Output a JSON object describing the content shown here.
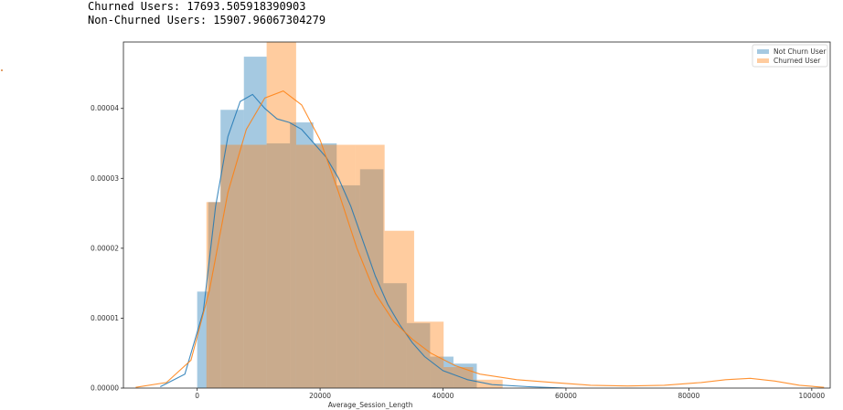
{
  "output": {
    "line1": "Churned Users: 17693.505918390903",
    "line2": "Non-Churned Users: 15907.96067304279"
  },
  "chart_data": {
    "type": "bar",
    "subtype": "overlaid histogram with KDE",
    "title": "",
    "xlabel": "Average_Session_Length",
    "ylabel": "",
    "xlim": [
      -12000,
      103000
    ],
    "ylim": [
      0,
      4.95e-05
    ],
    "x_ticks": [
      0,
      20000,
      40000,
      60000,
      80000,
      100000
    ],
    "x_tick_labels": [
      "0",
      "20000",
      "40000",
      "60000",
      "80000",
      "100000"
    ],
    "y_ticks": [
      0,
      1e-05,
      2e-05,
      3e-05,
      4e-05
    ],
    "y_tick_labels": [
      "0.00000",
      "0.00001",
      "0.00002",
      "0.00003",
      "0.00004"
    ],
    "grid": false,
    "legend_position": "top-right",
    "series": [
      {
        "name": "Not Churn User",
        "color": "#1f77b4",
        "bins": [
          {
            "x0": 0,
            "x1": 1800,
            "y": 1.38e-05
          },
          {
            "x0": 1800,
            "x1": 3800,
            "y": 2.66e-05
          },
          {
            "x0": 3800,
            "x1": 7600,
            "y": 3.98e-05
          },
          {
            "x0": 7600,
            "x1": 11300,
            "y": 4.74e-05
          },
          {
            "x0": 11300,
            "x1": 15100,
            "y": 3.5e-05
          },
          {
            "x0": 15100,
            "x1": 18900,
            "y": 3.8e-05
          },
          {
            "x0": 18900,
            "x1": 22700,
            "y": 3.5e-05
          },
          {
            "x0": 22700,
            "x1": 26500,
            "y": 2.9e-05
          },
          {
            "x0": 26500,
            "x1": 30300,
            "y": 3.13e-05
          },
          {
            "x0": 30300,
            "x1": 34100,
            "y": 1.5e-05
          },
          {
            "x0": 34100,
            "x1": 37900,
            "y": 9.3e-06
          },
          {
            "x0": 37900,
            "x1": 41700,
            "y": 4.5e-06
          },
          {
            "x0": 41700,
            "x1": 45500,
            "y": 3.5e-06
          }
        ],
        "kde": [
          [
            -6000,
            2e-07
          ],
          [
            -2000,
            2e-06
          ],
          [
            1000,
            1.1e-05
          ],
          [
            3000,
            2.6e-05
          ],
          [
            5000,
            3.6e-05
          ],
          [
            7000,
            4.1e-05
          ],
          [
            9000,
            4.2e-05
          ],
          [
            11000,
            4e-05
          ],
          [
            13000,
            3.85e-05
          ],
          [
            15000,
            3.8e-05
          ],
          [
            17000,
            3.7e-05
          ],
          [
            19000,
            3.5e-05
          ],
          [
            21000,
            3.3e-05
          ],
          [
            23000,
            3e-05
          ],
          [
            25000,
            2.6e-05
          ],
          [
            27000,
            2.1e-05
          ],
          [
            29000,
            1.6e-05
          ],
          [
            31000,
            1.2e-05
          ],
          [
            33000,
            9e-06
          ],
          [
            35000,
            6.5e-06
          ],
          [
            37000,
            4.5e-06
          ],
          [
            40000,
            2.5e-06
          ],
          [
            44000,
            1.2e-06
          ],
          [
            48000,
            5e-07
          ],
          [
            54000,
            2e-07
          ],
          [
            60000,
            0.0
          ]
        ]
      },
      {
        "name": "Churned User",
        "color": "#ff7f0e",
        "bins": [
          {
            "x0": 1500,
            "x1": 3800,
            "y": 2.66e-05
          },
          {
            "x0": 3800,
            "x1": 7600,
            "y": 3.48e-05
          },
          {
            "x0": 7600,
            "x1": 11300,
            "y": 3.48e-05
          },
          {
            "x0": 11300,
            "x1": 16100,
            "y": 5e-05
          },
          {
            "x0": 16100,
            "x1": 20900,
            "y": 3.48e-05
          },
          {
            "x0": 20900,
            "x1": 25700,
            "y": 3.48e-05
          },
          {
            "x0": 25700,
            "x1": 30500,
            "y": 3.48e-05
          },
          {
            "x0": 30500,
            "x1": 35300,
            "y": 2.25e-05
          },
          {
            "x0": 35300,
            "x1": 40100,
            "y": 9.5e-06
          },
          {
            "x0": 40100,
            "x1": 44900,
            "y": 3e-06
          },
          {
            "x0": 44900,
            "x1": 49700,
            "y": 1.2e-06
          },
          {
            "x0": 49700,
            "x1": 54500,
            "y": 0.0
          },
          {
            "x0": 54500,
            "x1": 59300,
            "y": 0.0
          }
        ],
        "kde": [
          [
            -10000,
            1e-07
          ],
          [
            -5000,
            8e-07
          ],
          [
            -1000,
            4e-06
          ],
          [
            2000,
            1.4e-05
          ],
          [
            5000,
            2.8e-05
          ],
          [
            8000,
            3.7e-05
          ],
          [
            11000,
            4.15e-05
          ],
          [
            14000,
            4.25e-05
          ],
          [
            17000,
            4.05e-05
          ],
          [
            20000,
            3.55e-05
          ],
          [
            23000,
            2.8e-05
          ],
          [
            26000,
            2e-05
          ],
          [
            29000,
            1.35e-05
          ],
          [
            32000,
            9.5e-06
          ],
          [
            35000,
            7e-06
          ],
          [
            38000,
            5e-06
          ],
          [
            42000,
            3.2e-06
          ],
          [
            46000,
            2e-06
          ],
          [
            52000,
            1.2e-06
          ],
          [
            58000,
            8e-07
          ],
          [
            64000,
            4e-07
          ],
          [
            70000,
            3e-07
          ],
          [
            76000,
            4e-07
          ],
          [
            82000,
            8e-07
          ],
          [
            86000,
            1.2e-06
          ],
          [
            90000,
            1.4e-06
          ],
          [
            94000,
            1e-06
          ],
          [
            98000,
            4e-07
          ],
          [
            102000,
            1e-07
          ]
        ]
      }
    ]
  }
}
